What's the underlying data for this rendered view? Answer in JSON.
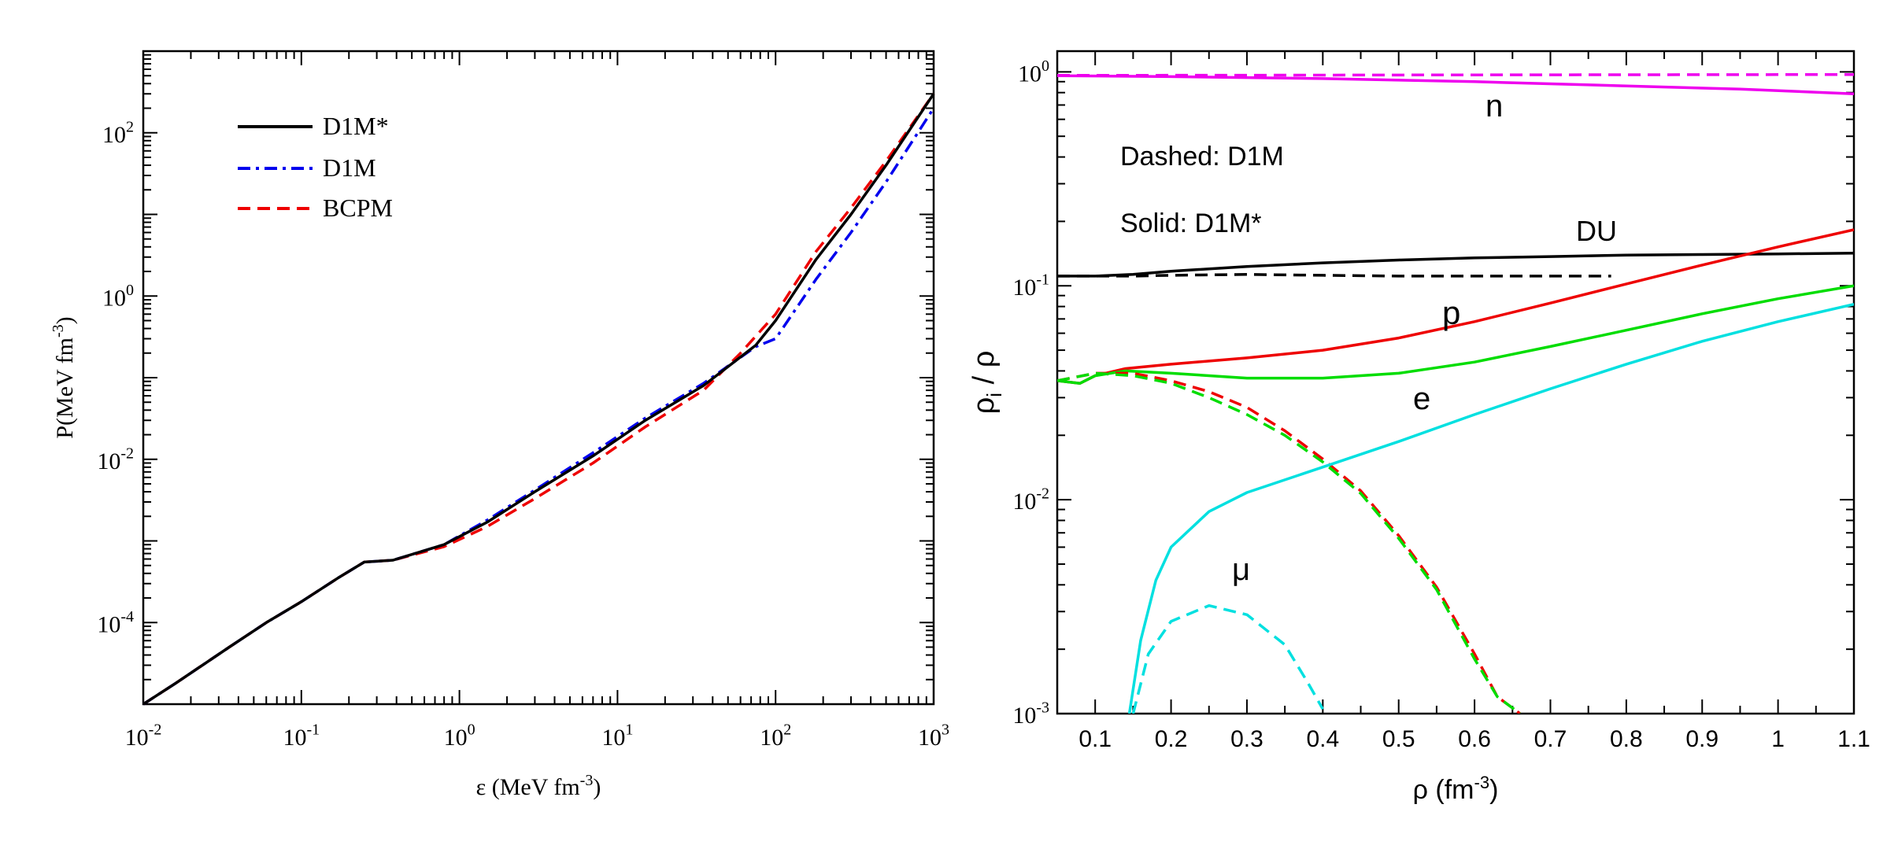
{
  "chart_data": [
    {
      "type": "line",
      "panel": "left",
      "xscale": "log",
      "yscale": "log",
      "xlim": [
        0.01,
        1000
      ],
      "ylim": [
        1e-05,
        1000
      ],
      "xlabel_parts": [
        "ε (MeV fm",
        "-3",
        ")"
      ],
      "ylabel_parts": [
        "P(MeV fm",
        "-3",
        ")"
      ],
      "xticks": [
        {
          "base": "10",
          "exp": "-2",
          "value": 0.01
        },
        {
          "base": "10",
          "exp": "-1",
          "value": 0.1
        },
        {
          "base": "10",
          "exp": "0",
          "value": 1
        },
        {
          "base": "10",
          "exp": "1",
          "value": 10
        },
        {
          "base": "10",
          "exp": "2",
          "value": 100
        },
        {
          "base": "10",
          "exp": "3",
          "value": 1000
        }
      ],
      "yticks": [
        {
          "base": "10",
          "exp": "-4",
          "value": 0.0001
        },
        {
          "base": "10",
          "exp": "-2",
          "value": 0.01
        },
        {
          "base": "10",
          "exp": "0",
          "value": 1
        },
        {
          "base": "10",
          "exp": "2",
          "value": 100
        }
      ],
      "legend": [
        {
          "label": "D1M*",
          "color": "#000000",
          "dash": "solid"
        },
        {
          "label": "D1M",
          "color": "#0000ee",
          "dash": "dashdot"
        },
        {
          "label": "BCPM",
          "color": "#ee0000",
          "dash": "dashed"
        }
      ],
      "series": [
        {
          "name": "D1M*",
          "color": "#000000",
          "dash": "solid",
          "x": [
            0.01,
            0.016,
            0.035,
            0.06,
            0.1,
            0.17,
            0.25,
            0.38,
            0.8,
            1.5,
            3,
            7,
            15,
            35,
            75,
            100,
            180,
            300,
            500,
            1000
          ],
          "y": [
            1e-05,
            1.8e-05,
            5e-05,
            0.0001,
            0.00018,
            0.00035,
            0.00055,
            0.00058,
            0.0009,
            0.0017,
            0.004,
            0.011,
            0.03,
            0.08,
            0.25,
            0.5,
            2.8,
            10,
            40,
            300
          ]
        },
        {
          "name": "D1M",
          "color": "#0000ee",
          "dash": "dashdot",
          "x": [
            0.01,
            0.016,
            0.035,
            0.06,
            0.1,
            0.17,
            0.25,
            0.38,
            0.8,
            1.5,
            3,
            7,
            15,
            35,
            75,
            100,
            180,
            300,
            500,
            1000
          ],
          "y": [
            1e-05,
            1.8e-05,
            5e-05,
            0.0001,
            0.00018,
            0.00035,
            0.00055,
            0.00058,
            0.0009,
            0.0018,
            0.0042,
            0.012,
            0.032,
            0.085,
            0.24,
            0.3,
            1.6,
            6,
            25,
            200
          ]
        },
        {
          "name": "BCPM",
          "color": "#ee0000",
          "dash": "dashed",
          "x": [
            0.01,
            0.016,
            0.035,
            0.06,
            0.1,
            0.17,
            0.25,
            0.38,
            0.8,
            1.5,
            3,
            7,
            15,
            35,
            60,
            100,
            180,
            300,
            500,
            1000
          ],
          "y": [
            1e-05,
            1.8e-05,
            5e-05,
            0.0001,
            0.00018,
            0.00035,
            0.00055,
            0.00058,
            0.00085,
            0.0015,
            0.0033,
            0.009,
            0.025,
            0.07,
            0.2,
            0.6,
            3.5,
            12,
            45,
            300
          ]
        }
      ]
    },
    {
      "type": "line",
      "panel": "right",
      "xscale": "linear",
      "yscale": "log",
      "xlim": [
        0.05,
        1.1
      ],
      "ylim": [
        0.001,
        1.25
      ],
      "xlabel_parts": [
        "ρ (fm",
        "-3",
        ")"
      ],
      "ylabel_parts": [
        "ρ",
        "i",
        " / ρ"
      ],
      "xticks": [
        "0.1",
        "0.2",
        "0.3",
        "0.4",
        "0.5",
        "0.6",
        "0.7",
        "0.8",
        "0.9",
        "1",
        "1.1"
      ],
      "yticks": [
        {
          "base": "10",
          "exp": "-3",
          "value": 0.001
        },
        {
          "base": "10",
          "exp": "-2",
          "value": 0.01
        },
        {
          "base": "10",
          "exp": "-1",
          "value": 0.1
        },
        {
          "base": "10",
          "exp": "0",
          "value": 1
        }
      ],
      "annotations": {
        "dashed_note": "Dashed:  D1M",
        "solid_note": "Solid:  D1M*",
        "n": "n",
        "du": "DU",
        "p": "p",
        "e": "e",
        "mu": "μ"
      },
      "series": [
        {
          "name": "n D1M*",
          "color": "#ee00ee",
          "dash": "solid",
          "x": [
            0.05,
            0.2,
            0.4,
            0.6,
            0.8,
            0.95,
            1.1
          ],
          "y": [
            0.96,
            0.95,
            0.93,
            0.9,
            0.86,
            0.83,
            0.79
          ]
        },
        {
          "name": "n D1M",
          "color": "#ee00ee",
          "dash": "dashed",
          "x": [
            0.05,
            0.3,
            0.6,
            0.9,
            1.1
          ],
          "y": [
            0.963,
            0.965,
            0.968,
            0.97,
            0.972
          ]
        },
        {
          "name": "DU D1M*",
          "color": "#000000",
          "dash": "solid",
          "x": [
            0.05,
            0.1,
            0.15,
            0.2,
            0.3,
            0.4,
            0.5,
            0.6,
            0.7,
            0.8,
            0.9,
            1.0,
            1.1
          ],
          "y": [
            0.111,
            0.111,
            0.113,
            0.117,
            0.123,
            0.128,
            0.132,
            0.135,
            0.137,
            0.139,
            0.14,
            0.141,
            0.142
          ]
        },
        {
          "name": "DU D1M",
          "color": "#000000",
          "dash": "dashed",
          "x": [
            0.05,
            0.15,
            0.2,
            0.3,
            0.4,
            0.5,
            0.6,
            0.7,
            0.78
          ],
          "y": [
            0.111,
            0.111,
            0.112,
            0.113,
            0.112,
            0.111,
            0.111,
            0.111,
            0.111
          ]
        },
        {
          "name": "p D1M*",
          "color": "#ee0000",
          "dash": "solid",
          "x": [
            0.05,
            0.08,
            0.1,
            0.14,
            0.2,
            0.3,
            0.4,
            0.5,
            0.6,
            0.7,
            0.8,
            0.9,
            1.0,
            1.1
          ],
          "y": [
            0.036,
            0.035,
            0.038,
            0.041,
            0.043,
            0.046,
            0.05,
            0.057,
            0.068,
            0.083,
            0.102,
            0.125,
            0.152,
            0.183
          ]
        },
        {
          "name": "e D1M*",
          "color": "#00dd00",
          "dash": "solid",
          "x": [
            0.05,
            0.08,
            0.1,
            0.14,
            0.2,
            0.3,
            0.4,
            0.5,
            0.6,
            0.7,
            0.8,
            0.9,
            1.0,
            1.1
          ],
          "y": [
            0.036,
            0.035,
            0.038,
            0.04,
            0.039,
            0.037,
            0.037,
            0.039,
            0.044,
            0.052,
            0.062,
            0.074,
            0.087,
            0.1
          ]
        },
        {
          "name": "p D1M",
          "color": "#ee0000",
          "dash": "dashed",
          "x": [
            0.05,
            0.1,
            0.15,
            0.2,
            0.25,
            0.3,
            0.35,
            0.4,
            0.45,
            0.5,
            0.55,
            0.6,
            0.63,
            0.66
          ],
          "y": [
            0.036,
            0.039,
            0.039,
            0.036,
            0.032,
            0.027,
            0.021,
            0.0155,
            0.011,
            0.0068,
            0.0039,
            0.0019,
            0.0012,
            0.001
          ]
        },
        {
          "name": "e D1M",
          "color": "#00dd00",
          "dash": "dashed",
          "x": [
            0.05,
            0.1,
            0.15,
            0.2,
            0.25,
            0.3,
            0.35,
            0.4,
            0.45,
            0.5,
            0.55,
            0.6,
            0.63,
            0.66
          ],
          "y": [
            0.036,
            0.039,
            0.038,
            0.035,
            0.03,
            0.025,
            0.02,
            0.015,
            0.0107,
            0.0066,
            0.0038,
            0.0018,
            0.0012,
            0.001
          ]
        },
        {
          "name": "mu D1M*",
          "color": "#00e0e0",
          "dash": "solid",
          "x": [
            0.145,
            0.16,
            0.18,
            0.2,
            0.25,
            0.3,
            0.4,
            0.5,
            0.6,
            0.7,
            0.8,
            0.9,
            1.0,
            1.1
          ],
          "y": [
            0.001,
            0.0022,
            0.0042,
            0.006,
            0.0088,
            0.0108,
            0.0142,
            0.0187,
            0.025,
            0.033,
            0.043,
            0.055,
            0.068,
            0.082
          ]
        },
        {
          "name": "mu D1M",
          "color": "#00e0e0",
          "dash": "dashed",
          "x": [
            0.15,
            0.17,
            0.2,
            0.25,
            0.3,
            0.35,
            0.38,
            0.4
          ],
          "y": [
            0.001,
            0.0019,
            0.0027,
            0.0032,
            0.0029,
            0.0021,
            0.0014,
            0.00105
          ]
        }
      ]
    }
  ]
}
